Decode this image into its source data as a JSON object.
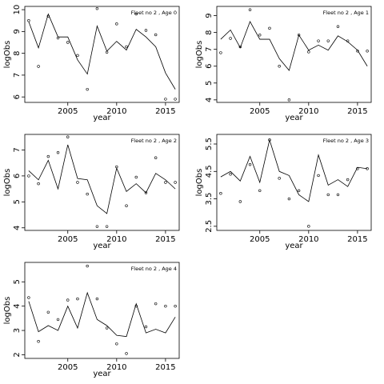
{
  "chart_data": [
    {
      "type": "scatter",
      "title": "Fleet no 2 , Age 0",
      "xlabel": "year",
      "ylabel": "logObs",
      "xlim": [
        2000.6,
        2016.4
      ],
      "ylim": [
        5.75,
        10.15
      ],
      "xticks": [
        2005,
        2010,
        2015
      ],
      "yticks": [
        6,
        7,
        8,
        9,
        10
      ],
      "series": [
        {
          "kind": "points",
          "x": [
            2001,
            2002,
            2003,
            2004,
            2005,
            2006,
            2007,
            2008,
            2009,
            2010,
            2011,
            2012,
            2013,
            2014,
            2015,
            2016
          ],
          "y": [
            9.5,
            7.4,
            9.7,
            8.7,
            8.5,
            7.9,
            6.35,
            10.05,
            8.05,
            9.35,
            8.3,
            9.8,
            9.05,
            8.85,
            5.9,
            5.9
          ]
        },
        {
          "kind": "line",
          "x": [
            2001,
            2002,
            2003,
            2004,
            2005,
            2006,
            2007,
            2008,
            2009,
            2010,
            2011,
            2012,
            2013,
            2014,
            2015,
            2016
          ],
          "y": [
            9.45,
            8.25,
            9.8,
            8.75,
            8.75,
            7.7,
            7.05,
            9.25,
            8.1,
            8.55,
            8.15,
            9.1,
            8.75,
            8.3,
            7.1,
            6.35
          ]
        }
      ]
    },
    {
      "type": "scatter",
      "title": "Fleet no 2 , Age 1",
      "xlabel": "year",
      "ylabel": "logObs",
      "xlim": [
        2000.6,
        2016.4
      ],
      "ylim": [
        3.85,
        9.55
      ],
      "xticks": [
        2005,
        2010,
        2015
      ],
      "yticks": [
        4,
        5,
        6,
        7,
        8,
        9
      ],
      "series": [
        {
          "kind": "points",
          "x": [
            2001,
            2002,
            2003,
            2004,
            2005,
            2006,
            2007,
            2008,
            2009,
            2010,
            2011,
            2012,
            2013,
            2014,
            2015,
            2016
          ],
          "y": [
            6.8,
            7.65,
            7.15,
            9.35,
            7.85,
            8.25,
            6.0,
            4.0,
            7.85,
            6.85,
            7.5,
            7.5,
            8.35,
            7.5,
            6.9,
            6.9
          ]
        },
        {
          "kind": "line",
          "x": [
            2001,
            2002,
            2003,
            2004,
            2005,
            2006,
            2007,
            2008,
            2009,
            2010,
            2011,
            2012,
            2013,
            2014,
            2015,
            2016
          ],
          "y": [
            7.6,
            8.15,
            7.1,
            8.65,
            7.6,
            7.6,
            6.45,
            5.75,
            7.85,
            6.95,
            7.25,
            6.95,
            7.8,
            7.45,
            6.95,
            6.0
          ]
        }
      ]
    },
    {
      "type": "scatter",
      "title": "Fleet no 2 , Age 2",
      "xlabel": "year",
      "ylabel": "logObs",
      "xlim": [
        2000.6,
        2016.4
      ],
      "ylim": [
        3.9,
        7.6
      ],
      "xticks": [
        2005,
        2010,
        2015
      ],
      "yticks": [
        4.0,
        5.0,
        6.0,
        7.0
      ],
      "series": [
        {
          "kind": "points",
          "x": [
            2001,
            2002,
            2003,
            2004,
            2005,
            2006,
            2007,
            2008,
            2009,
            2010,
            2011,
            2012,
            2013,
            2014,
            2015,
            2016
          ],
          "y": [
            6.0,
            5.7,
            6.75,
            6.9,
            7.5,
            5.75,
            5.3,
            4.05,
            4.05,
            6.35,
            4.85,
            5.95,
            5.35,
            6.7,
            5.75,
            5.75
          ]
        },
        {
          "kind": "line",
          "x": [
            2001,
            2002,
            2003,
            2004,
            2005,
            2006,
            2007,
            2008,
            2009,
            2010,
            2011,
            2012,
            2013,
            2014,
            2015,
            2016
          ],
          "y": [
            6.2,
            5.85,
            6.6,
            5.5,
            7.2,
            5.9,
            5.85,
            4.85,
            4.55,
            6.3,
            5.4,
            5.7,
            5.35,
            6.1,
            5.85,
            5.5
          ]
        }
      ]
    },
    {
      "type": "scatter",
      "title": "Fleet no 2 , Age 3",
      "xlabel": "year",
      "ylabel": "logObs",
      "xlim": [
        2000.6,
        2016.4
      ],
      "ylim": [
        2.35,
        5.85
      ],
      "xticks": [
        2005,
        2010,
        2015
      ],
      "yticks": [
        2.5,
        3.5,
        4.5,
        5.5
      ],
      "series": [
        {
          "kind": "points",
          "x": [
            2001,
            2002,
            2003,
            2004,
            2005,
            2006,
            2007,
            2008,
            2009,
            2010,
            2011,
            2012,
            2013,
            2014,
            2015,
            2016
          ],
          "y": [
            3.7,
            4.4,
            3.4,
            4.75,
            3.8,
            5.65,
            4.25,
            3.5,
            3.8,
            2.5,
            4.35,
            3.65,
            3.65,
            4.2,
            4.6,
            4.6
          ]
        },
        {
          "kind": "line",
          "x": [
            2001,
            2002,
            2003,
            2004,
            2005,
            2006,
            2007,
            2008,
            2009,
            2010,
            2011,
            2012,
            2013,
            2014,
            2015,
            2016
          ],
          "y": [
            4.3,
            4.5,
            4.15,
            5.05,
            4.1,
            5.65,
            4.5,
            4.35,
            3.65,
            3.4,
            5.1,
            4.0,
            4.2,
            3.95,
            4.65,
            4.6
          ]
        }
      ]
    },
    {
      "type": "scatter",
      "title": "Fleet no 2 , Age 4",
      "xlabel": "year",
      "ylabel": "logObs",
      "xlim": [
        2000.6,
        2016.4
      ],
      "ylim": [
        1.85,
        5.8
      ],
      "xticks": [
        2005,
        2010,
        2015
      ],
      "yticks": [
        2,
        3,
        4,
        5
      ],
      "series": [
        {
          "kind": "points",
          "x": [
            2001,
            2002,
            2003,
            2004,
            2005,
            2006,
            2007,
            2008,
            2009,
            2010,
            2011,
            2012,
            2013,
            2014,
            2015,
            2016
          ],
          "y": [
            4.35,
            2.55,
            3.75,
            3.45,
            4.25,
            4.3,
            5.65,
            4.3,
            3.1,
            2.45,
            2.05,
            4.0,
            3.15,
            4.1,
            4.0,
            4.0
          ]
        },
        {
          "kind": "line",
          "x": [
            2001,
            2002,
            2003,
            2004,
            2005,
            2006,
            2007,
            2008,
            2009,
            2010,
            2011,
            2012,
            2013,
            2014,
            2015,
            2016
          ],
          "y": [
            4.2,
            2.95,
            3.2,
            3.0,
            4.0,
            3.1,
            4.55,
            3.45,
            3.2,
            2.8,
            2.75,
            4.1,
            2.9,
            3.05,
            2.9,
            3.55
          ]
        }
      ]
    }
  ]
}
